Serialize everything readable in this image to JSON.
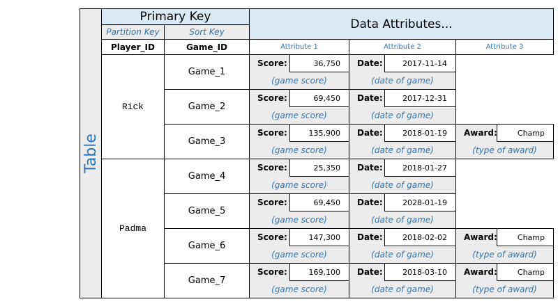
{
  "table_label": "Table",
  "headers": {
    "primary_key": "Primary Key",
    "data_attributes": "Data Attributes...",
    "partition_key": "Partition Key",
    "sort_key": "Sort Key",
    "partition_attr": "Player_ID",
    "sort_attr": "Game_ID",
    "attributes": [
      "Attribute 1",
      "Attribute 2",
      "Attribute 3"
    ]
  },
  "partitions": [
    {
      "name": "Rick",
      "items": [
        {
          "sort": "Game_1",
          "attributes": [
            {
              "label": "Score:",
              "value": "36,750",
              "description": "(game score)"
            },
            {
              "label": "Date:",
              "value": "2017-11-14",
              "description": "(date of game)"
            }
          ]
        },
        {
          "sort": "Game_2",
          "attributes": [
            {
              "label": "Score:",
              "value": "69,450",
              "description": "(game score)"
            },
            {
              "label": "Date:",
              "value": "2017-12-31",
              "description": "(date of game)"
            }
          ]
        },
        {
          "sort": "Game_3",
          "attributes": [
            {
              "label": "Score:",
              "value": "135,900",
              "description": "(game score)"
            },
            {
              "label": "Date:",
              "value": "2018-01-19",
              "description": "(date of game)"
            },
            {
              "label": "Award:",
              "value": "Champ",
              "description": "(type of award)"
            }
          ]
        }
      ]
    },
    {
      "name": "Padma",
      "items": [
        {
          "sort": "Game_4",
          "attributes": [
            {
              "label": "Score:",
              "value": "25,350",
              "description": "(game score)"
            },
            {
              "label": "Date:",
              "value": "2018-01-27",
              "description": "(date of game)"
            }
          ]
        },
        {
          "sort": "Game_5",
          "attributes": [
            {
              "label": "Score:",
              "value": "69,450",
              "description": "(game score)"
            },
            {
              "label": "Date:",
              "value": "2028-01-19",
              "description": "(date of game)"
            }
          ]
        },
        {
          "sort": "Game_6",
          "attributes": [
            {
              "label": "Score:",
              "value": "147,300",
              "description": "(game score)"
            },
            {
              "label": "Date:",
              "value": "2018-02-02",
              "description": "(date of game)"
            },
            {
              "label": "Award:",
              "value": "Champ",
              "description": "(type of award)"
            }
          ]
        },
        {
          "sort": "Game_7",
          "attributes": [
            {
              "label": "Score:",
              "value": "169,100",
              "description": "(game score)"
            },
            {
              "label": "Date:",
              "value": "2018-03-10",
              "description": "(date of game)"
            },
            {
              "label": "Award:",
              "value": "Champ",
              "description": "(type of award)"
            }
          ]
        }
      ]
    }
  ]
}
